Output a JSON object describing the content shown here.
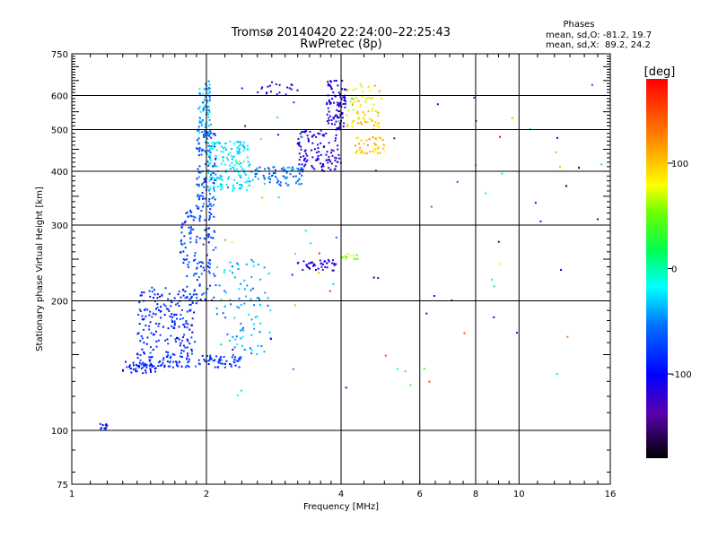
{
  "chart_data": {
    "type": "scatter",
    "title": "Tromsø 20140420 22:24:00–22:25:43",
    "subtitle": "RwPretec (8p)",
    "phase_stats": {
      "heading": "Phases",
      "line_o": "mean, sd,O: -81.2, 19.7",
      "line_x": "mean, sd,X:  89.2, 24.2"
    },
    "xlabel": "Frequency [MHz]",
    "ylabel": "Stationary phase Virtual Height [km]",
    "x_scale": "log",
    "y_scale": "log",
    "xlim": [
      1,
      16
    ],
    "ylim": [
      75,
      750
    ],
    "x_ticks": [
      {
        "v": 1,
        "label": "1"
      },
      {
        "v": 2,
        "label": "2"
      },
      {
        "v": 4,
        "label": "4"
      },
      {
        "v": 6,
        "label": "6"
      },
      {
        "v": 8,
        "label": "8"
      },
      {
        "v": 10,
        "label": "10"
      },
      {
        "v": 16,
        "label": "16"
      }
    ],
    "x_grid": [
      2,
      4,
      6,
      8,
      10
    ],
    "y_ticks": [
      {
        "v": 75,
        "label": "75"
      },
      {
        "v": 100,
        "label": "100"
      },
      {
        "v": 200,
        "label": "200"
      },
      {
        "v": 300,
        "label": "300"
      },
      {
        "v": 400,
        "label": "400"
      },
      {
        "v": 500,
        "label": "500"
      },
      {
        "v": 600,
        "label": "600"
      },
      {
        "v": 750,
        "label": "750"
      }
    ],
    "y_grid": [
      100,
      200,
      300,
      400,
      500,
      600
    ],
    "grid": true,
    "colorbar": {
      "unit_label": "[deg]",
      "range": [
        -180,
        180
      ],
      "tick_labels": [
        {
          "v": 100,
          "label": "100"
        },
        {
          "v": 0,
          "label": "0"
        },
        {
          "v": -100,
          "label": "-100"
        }
      ]
    },
    "clusters": [
      {
        "f": [
          1.15,
          1.2
        ],
        "h": [
          100,
          104
        ],
        "phase": [
          -110,
          -80
        ],
        "n": 10
      },
      {
        "f": [
          1.3,
          1.55
        ],
        "h": [
          135,
          145
        ],
        "phase": [
          -110,
          -80
        ],
        "n": 40
      },
      {
        "f": [
          1.4,
          2.4
        ],
        "h": [
          140,
          150
        ],
        "phase": [
          -100,
          -60
        ],
        "n": 120
      },
      {
        "f": [
          1.4,
          1.9
        ],
        "h": [
          150,
          215
        ],
        "phase": [
          -105,
          -65
        ],
        "n": 180
      },
      {
        "f": [
          1.75,
          2.1
        ],
        "h": [
          200,
          330
        ],
        "phase": [
          -95,
          -55
        ],
        "n": 140
      },
      {
        "f": [
          1.9,
          2.1
        ],
        "h": [
          330,
          500
        ],
        "phase": [
          -90,
          -40
        ],
        "n": 110
      },
      {
        "f": [
          1.92,
          2.05
        ],
        "h": [
          480,
          650
        ],
        "phase": [
          -60,
          -20
        ],
        "n": 80
      },
      {
        "f": [
          2.0,
          2.5
        ],
        "h": [
          360,
          470
        ],
        "phase": [
          -40,
          -10
        ],
        "n": 160
      },
      {
        "f": [
          2.5,
          3.3
        ],
        "h": [
          370,
          410
        ],
        "phase": [
          -75,
          -30
        ],
        "n": 80
      },
      {
        "f": [
          2.1,
          2.8
        ],
        "h": [
          150,
          250
        ],
        "phase": [
          -60,
          -20
        ],
        "n": 90
      },
      {
        "f": [
          3.2,
          4.0
        ],
        "h": [
          400,
          500
        ],
        "phase": [
          -130,
          -100
        ],
        "n": 110
      },
      {
        "f": [
          3.7,
          4.1
        ],
        "h": [
          500,
          650
        ],
        "phase": [
          -125,
          -100
        ],
        "n": 90
      },
      {
        "f": [
          4.1,
          4.9
        ],
        "h": [
          500,
          640
        ],
        "phase": [
          60,
          120
        ],
        "n": 70
      },
      {
        "f": [
          4.3,
          5.0
        ],
        "h": [
          440,
          480
        ],
        "phase": [
          80,
          125
        ],
        "n": 40
      },
      {
        "f": [
          3.2,
          3.9
        ],
        "h": [
          235,
          250
        ],
        "phase": [
          -130,
          -100
        ],
        "n": 40
      },
      {
        "f": [
          4.0,
          4.4
        ],
        "h": [
          250,
          260
        ],
        "phase": [
          40,
          90
        ],
        "n": 12
      },
      {
        "f": [
          2.6,
          3.2
        ],
        "h": [
          600,
          650
        ],
        "phase": [
          -130,
          -100
        ],
        "n": 20
      },
      {
        "f": [
          2.2,
          16
        ],
        "h": [
          120,
          650
        ],
        "phase": [
          -180,
          180
        ],
        "n": 80
      }
    ]
  }
}
